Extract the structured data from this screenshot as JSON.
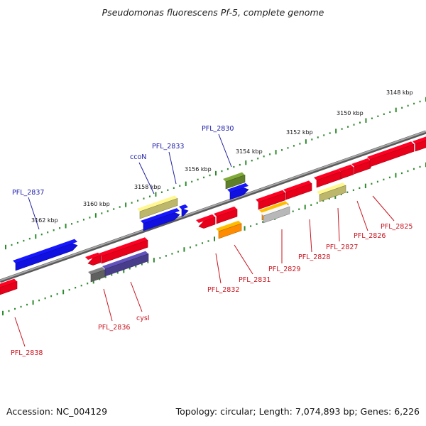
{
  "header": {
    "title": "Pseudomonas fluorescens Pf-5, complete genome"
  },
  "footer": {
    "accession": "Accession: NC_004129",
    "topology": "Topology: circular; Length: 7,074,893 bp; Genes: 6,226"
  },
  "ticks": [
    "3148 kbp",
    "3150 kbp",
    "3152 kbp",
    "3154 kbp",
    "3156 kbp",
    "3158 kbp",
    "3160 kbp",
    "3162 kbp"
  ],
  "labels": {
    "top": [
      "PFL_2837",
      "ccoN",
      "PFL_2833",
      "PFL_2830"
    ],
    "bottom": [
      "PFL_2838",
      "PFL_2836",
      "cysI",
      "PFL_2832",
      "PFL_2831",
      "PFL_2829",
      "PFL_2828",
      "PFL_2827",
      "PFL_2826",
      "PFL_2825"
    ]
  },
  "colors": {
    "backbone": "#808080",
    "tick_dots": "#2d8a2d",
    "gene_red": "#e8001a",
    "gene_blue": "#1010e0",
    "gene_olive": "#5f7f2a",
    "gene_khaki": "#bdb76b",
    "gene_orange": "#ff8c00",
    "gene_slate": "#483d8b",
    "gene_gray": "#606060",
    "label_blue": "#1a1aa8",
    "label_red": "#c8141e"
  }
}
